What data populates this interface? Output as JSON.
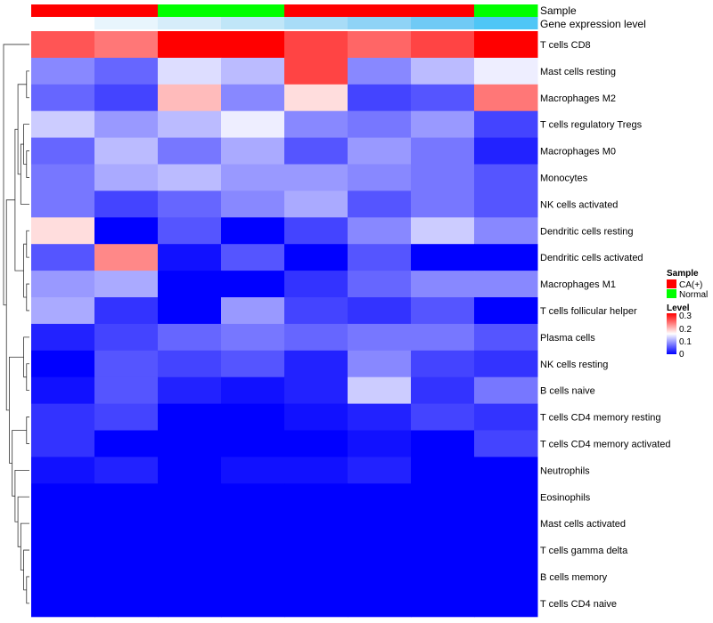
{
  "chart_data": {
    "type": "heatmap",
    "annotation_labels": {
      "sample": "Sample",
      "gene": "Gene expression level"
    },
    "sample_groups": [
      "CA(+)",
      "CA(+)",
      "Normal",
      "Normal",
      "CA(+)",
      "CA(+)",
      "CA(+)",
      "Normal"
    ],
    "gene_expression_colors": [
      "#ffffff",
      "#e8f5fd",
      "#d6edfa",
      "#c0e6f8",
      "#a8dcf7",
      "#8fd3f6",
      "#70caf5",
      "#4fc6f6"
    ],
    "rows": [
      "T cells CD8",
      "Mast cells resting",
      "Macrophages M2",
      "T cells regulatory  Tregs",
      "Macrophages M0",
      "Monocytes",
      "NK cells activated",
      "Dendritic cells resting",
      "Dendritic cells activated",
      "Macrophages M1",
      "T cells follicular helper",
      "Plasma cells",
      "NK cells resting",
      "B cells naive",
      "T cells CD4 memory resting",
      "T cells CD4 memory activated",
      "Neutrophils",
      "Eosinophils",
      "Mast cells activated",
      "T cells gamma delta",
      "B cells memory",
      "T cells CD4 naive"
    ],
    "values": [
      [
        0.25,
        0.23,
        0.3,
        0.3,
        0.26,
        0.24,
        0.26,
        0.3
      ],
      [
        0.08,
        0.06,
        0.13,
        0.11,
        0.26,
        0.08,
        0.11,
        0.14
      ],
      [
        0.06,
        0.04,
        0.19,
        0.08,
        0.17,
        0.04,
        0.05,
        0.23
      ],
      [
        0.12,
        0.09,
        0.11,
        0.14,
        0.08,
        0.07,
        0.09,
        0.04
      ],
      [
        0.06,
        0.11,
        0.07,
        0.1,
        0.05,
        0.09,
        0.07,
        0.02
      ],
      [
        0.07,
        0.1,
        0.11,
        0.09,
        0.09,
        0.08,
        0.07,
        0.05
      ],
      [
        0.07,
        0.04,
        0.06,
        0.08,
        0.1,
        0.05,
        0.07,
        0.05
      ],
      [
        0.17,
        0.0,
        0.05,
        0.0,
        0.04,
        0.08,
        0.12,
        0.08
      ],
      [
        0.05,
        0.22,
        0.01,
        0.05,
        0.0,
        0.05,
        0.0,
        0.0
      ],
      [
        0.09,
        0.1,
        0.0,
        0.0,
        0.03,
        0.06,
        0.08,
        0.08
      ],
      [
        0.1,
        0.03,
        0.0,
        0.09,
        0.04,
        0.03,
        0.05,
        0.0
      ],
      [
        0.02,
        0.04,
        0.06,
        0.07,
        0.06,
        0.07,
        0.07,
        0.05
      ],
      [
        0.0,
        0.05,
        0.04,
        0.05,
        0.02,
        0.08,
        0.04,
        0.03
      ],
      [
        0.01,
        0.05,
        0.02,
        0.01,
        0.02,
        0.12,
        0.03,
        0.07
      ],
      [
        0.03,
        0.04,
        0.0,
        0.0,
        0.01,
        0.02,
        0.04,
        0.03
      ],
      [
        0.03,
        0.0,
        0.0,
        0.0,
        0.0,
        0.01,
        0.0,
        0.04
      ],
      [
        0.01,
        0.02,
        0.0,
        0.01,
        0.01,
        0.02,
        0.0,
        0.0
      ],
      [
        0,
        0,
        0,
        0,
        0,
        0,
        0,
        0
      ],
      [
        0,
        0,
        0,
        0,
        0,
        0,
        0,
        0
      ],
      [
        0,
        0,
        0,
        0,
        0,
        0,
        0,
        0
      ],
      [
        0,
        0,
        0,
        0,
        0,
        0,
        0,
        0
      ],
      [
        0,
        0,
        0,
        0,
        0,
        0,
        0,
        0
      ]
    ],
    "color_range": [
      0,
      0.3
    ],
    "color_stops": [
      "#0000ff",
      "#ffffff",
      "#ff0000"
    ],
    "legend": {
      "sample_title": "Sample",
      "sample_entries": [
        {
          "label": "CA(+)",
          "color": "#ff0000"
        },
        {
          "label": "Normal",
          "color": "#00ff00"
        }
      ],
      "level_title": "Level",
      "level_ticks": [
        "0.3",
        "0.2",
        "0.1",
        "0"
      ],
      "placement": "right"
    }
  }
}
